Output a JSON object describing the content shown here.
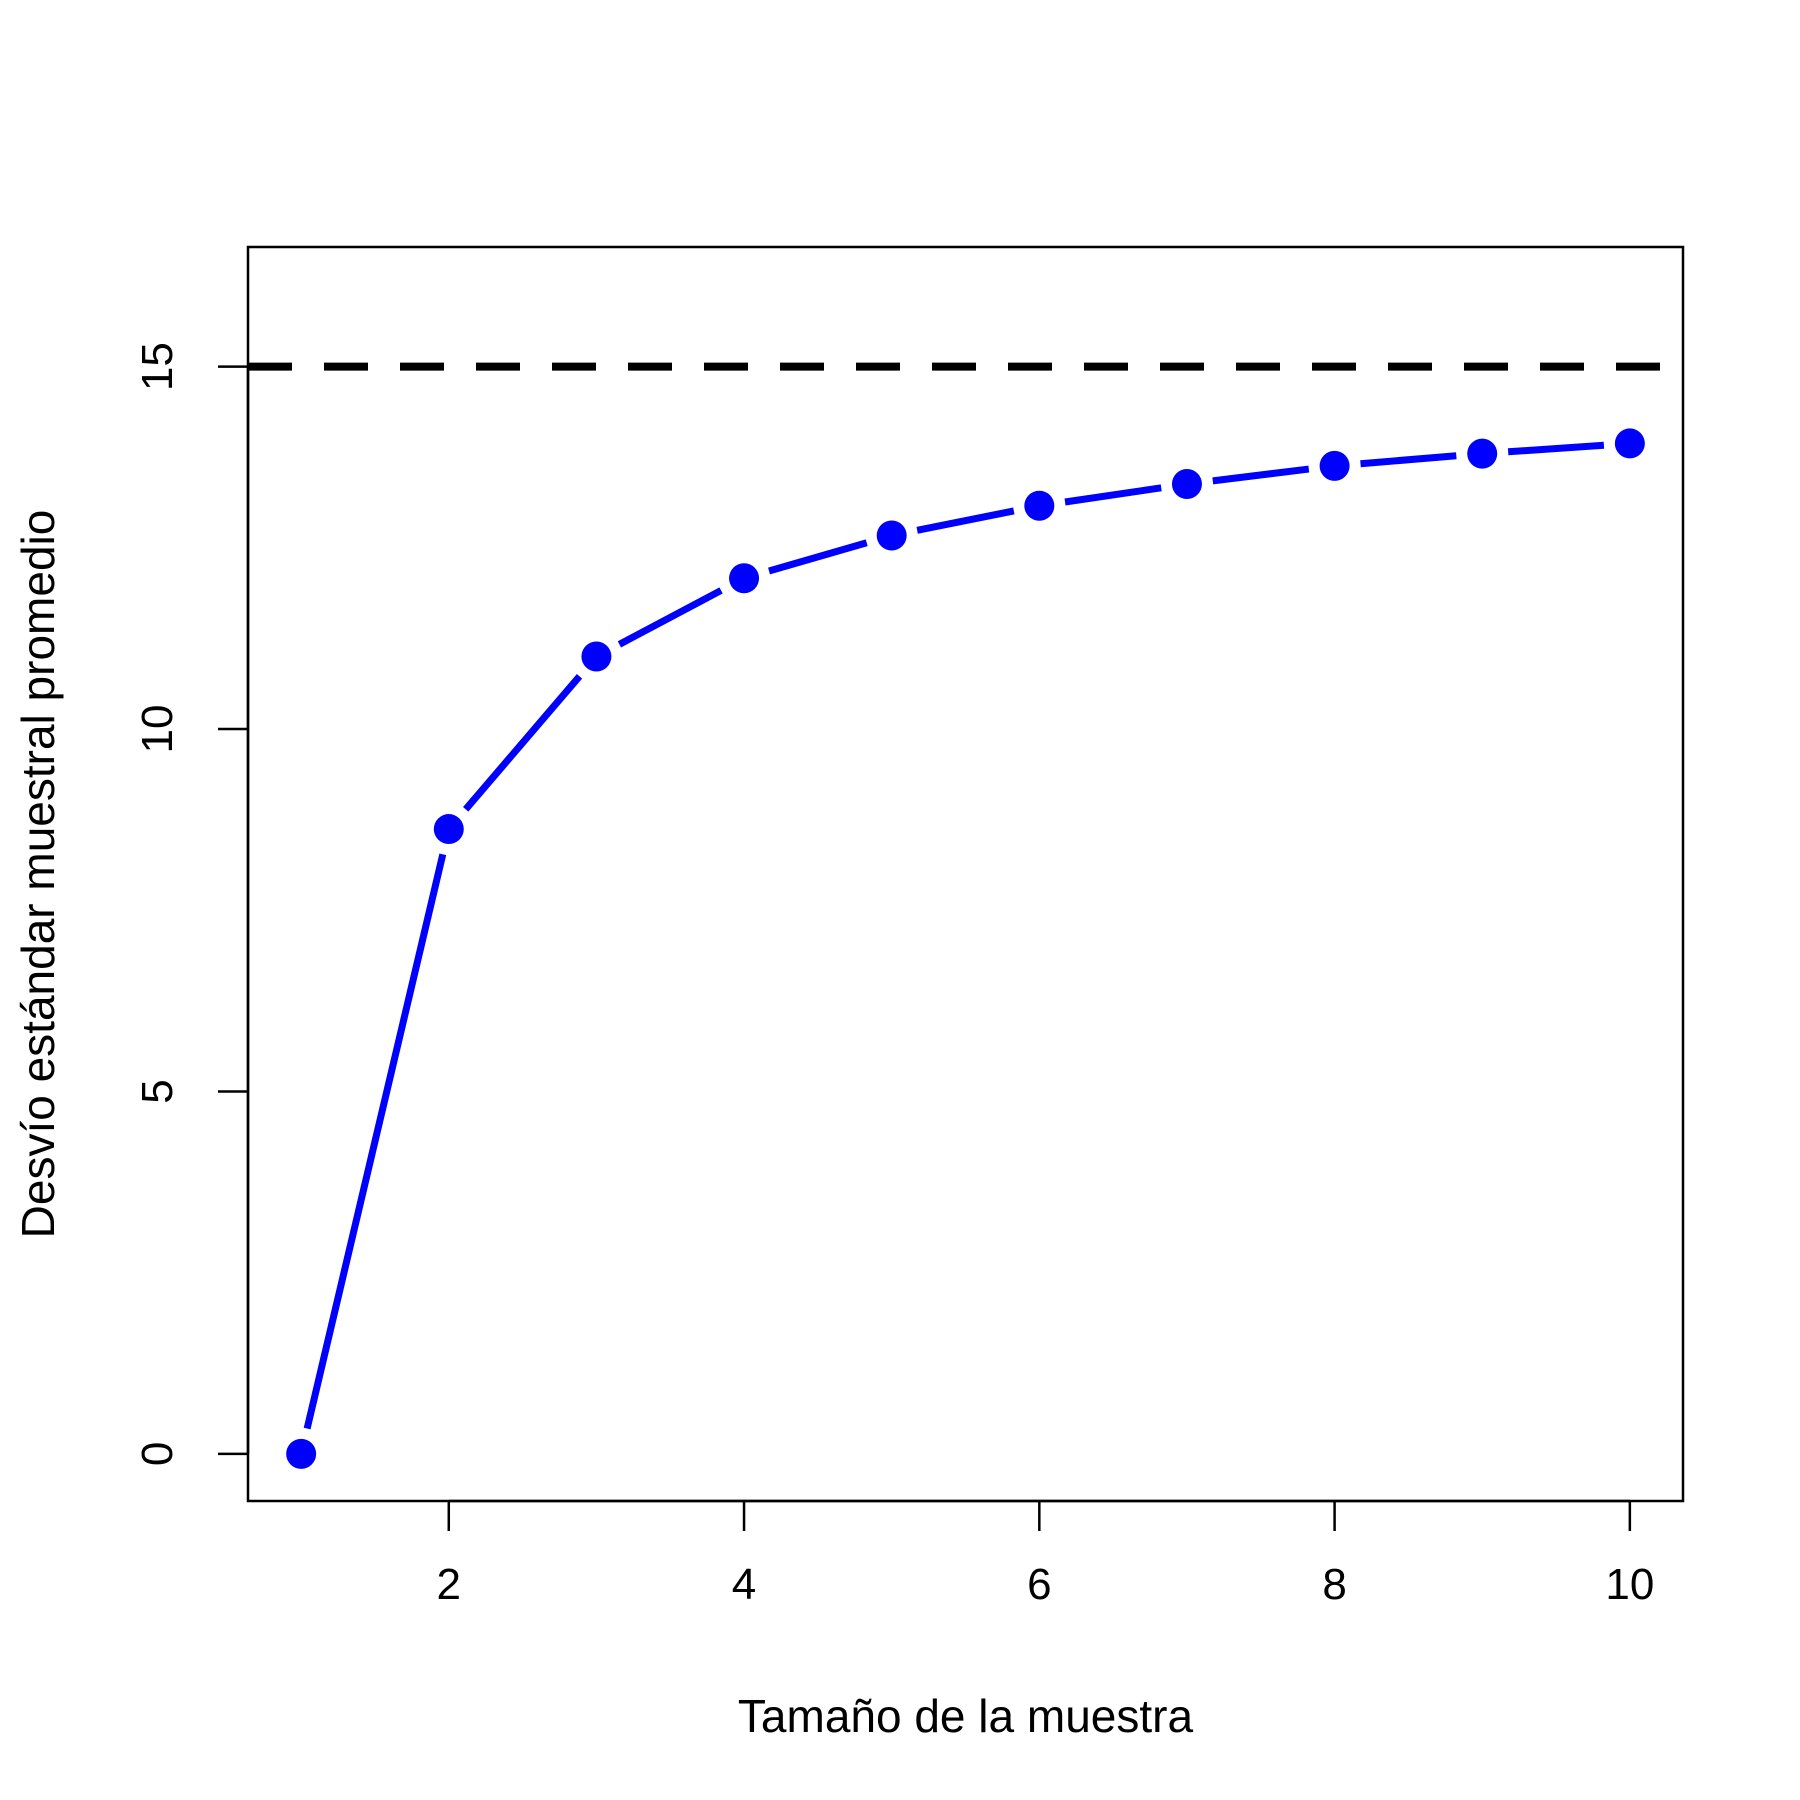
{
  "chart_data": {
    "type": "line",
    "title": "",
    "xlabel": "Tamaño de la muestra",
    "ylabel": "Desvío estándar muestral promedio",
    "xlim": [
      0.64,
      10.36
    ],
    "ylim": [
      -0.65,
      16.65
    ],
    "x_ticks": [
      2,
      4,
      6,
      8,
      10
    ],
    "y_ticks": [
      0,
      5,
      10,
      15
    ],
    "grid": false,
    "legend": "none",
    "series": [
      {
        "x": [
          1,
          2,
          3,
          4,
          5,
          6,
          7,
          8,
          9,
          10
        ],
        "values": [
          0.0,
          8.62,
          11.0,
          12.08,
          12.67,
          13.08,
          13.38,
          13.63,
          13.8,
          13.94
        ],
        "color": "#0000ff",
        "style": "line+points"
      }
    ],
    "reference_lines": [
      {
        "y": 15,
        "color": "#000000",
        "style": "dashed"
      }
    ]
  }
}
